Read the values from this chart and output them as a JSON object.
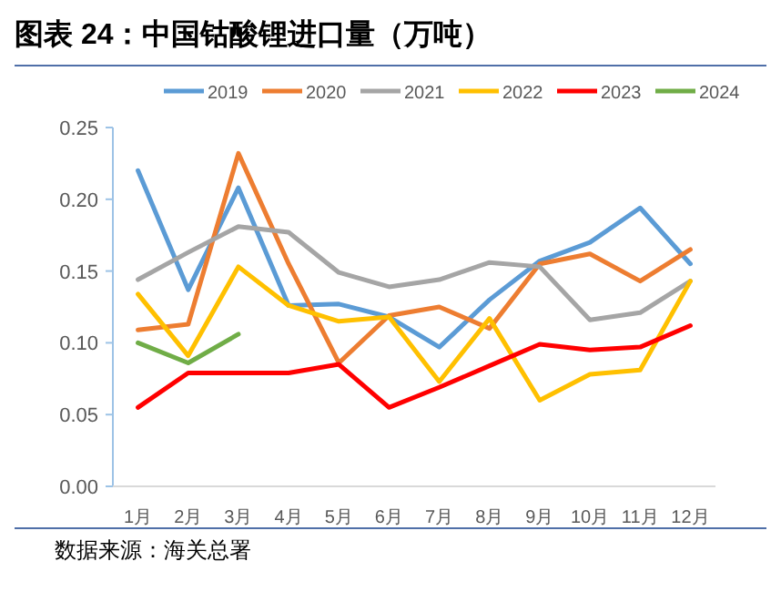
{
  "chart_data": {
    "type": "line",
    "title": "图表 24：中国钴酸锂进口量（万吨）",
    "categories": [
      "1月",
      "2月",
      "3月",
      "4月",
      "5月",
      "6月",
      "7月",
      "8月",
      "9月",
      "10月",
      "11月",
      "12月"
    ],
    "series": [
      {
        "name": "2019",
        "color": "#5b9bd5",
        "values": [
          0.22,
          0.137,
          0.208,
          0.126,
          0.127,
          0.118,
          0.097,
          0.13,
          0.157,
          0.17,
          0.194,
          0.155
        ]
      },
      {
        "name": "2020",
        "color": "#ed7d31",
        "values": [
          0.109,
          0.113,
          0.232,
          0.155,
          0.086,
          0.119,
          0.125,
          0.11,
          0.155,
          0.162,
          0.143,
          0.165
        ]
      },
      {
        "name": "2021",
        "color": "#a5a5a5",
        "values": [
          0.144,
          0.163,
          0.181,
          0.177,
          0.149,
          0.139,
          0.144,
          0.156,
          0.153,
          0.116,
          0.121,
          0.143
        ]
      },
      {
        "name": "2022",
        "color": "#ffc000",
        "values": [
          0.134,
          0.091,
          0.153,
          0.126,
          0.115,
          0.118,
          0.073,
          0.117,
          0.06,
          0.078,
          0.081,
          0.143
        ]
      },
      {
        "name": "2023",
        "color": "#ff0000",
        "values": [
          0.055,
          0.079,
          0.079,
          0.079,
          0.085,
          0.055,
          0.069,
          0.084,
          0.099,
          0.095,
          0.097,
          0.112
        ]
      },
      {
        "name": "2024",
        "color": "#70ad47",
        "values": [
          0.1,
          0.086,
          0.106,
          null,
          null,
          null,
          null,
          null,
          null,
          null,
          null,
          null
        ]
      }
    ],
    "ylim": [
      0,
      0.25
    ],
    "yticks": [
      {
        "value": 0,
        "label": "0.00"
      },
      {
        "value": 0.05,
        "label": "0.05"
      },
      {
        "value": 0.1,
        "label": "0.10"
      },
      {
        "value": 0.15,
        "label": "0.15"
      },
      {
        "value": 0.2,
        "label": "0.20"
      },
      {
        "value": 0.25,
        "label": "0.25"
      }
    ],
    "grid": false,
    "legend": "top",
    "marker": "none",
    "line_style": "solid",
    "annotations": [
      "数据来源：海关总署"
    ]
  }
}
